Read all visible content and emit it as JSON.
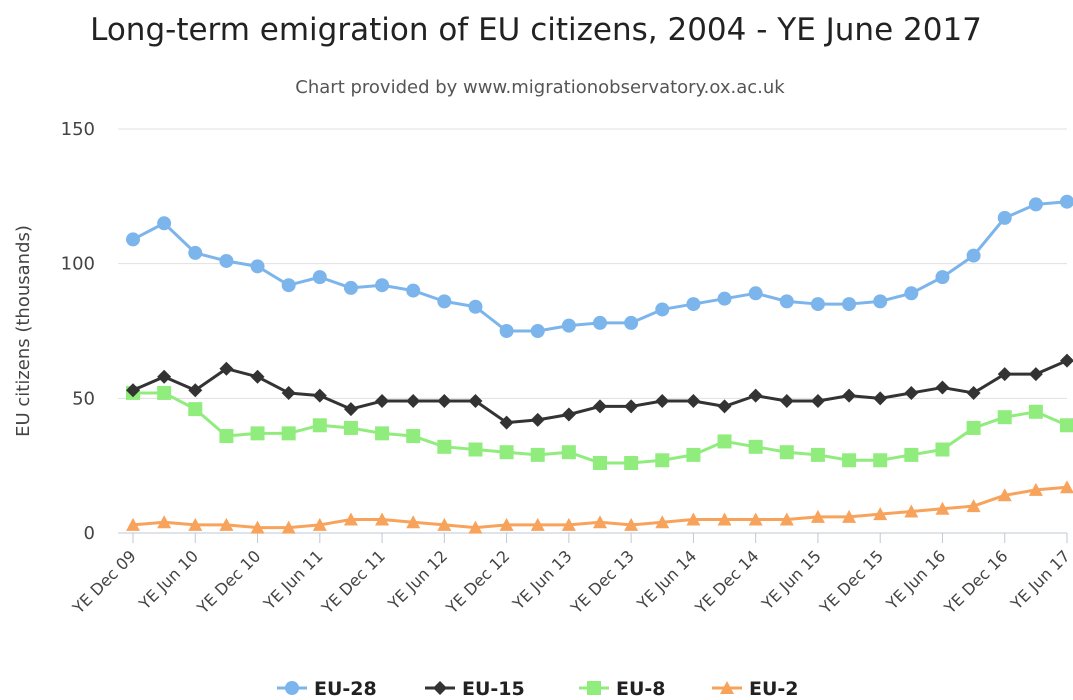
{
  "chart_data": {
    "type": "line",
    "title": "Long-term emigration of EU citizens, 2004 - YE June 2017",
    "subtitle": "Chart provided by www.migrationobservatory.ox.ac.uk",
    "ylabel": "EU citizens (thousands)",
    "xlabel": "",
    "ylim": [
      0,
      150
    ],
    "yticks": [
      0,
      50,
      100,
      150
    ],
    "grid": true,
    "legend_position": "bottom",
    "x": [
      "YE Dec 09",
      "YE Mar 10",
      "YE Jun 10",
      "YE Sep 10",
      "YE Dec 10",
      "YE Mar 11",
      "YE Jun 11",
      "YE Sep 11",
      "YE Dec 11",
      "YE Mar 12",
      "YE Jun 12",
      "YE Sep 12",
      "YE Dec 12",
      "YE Mar 13",
      "YE Jun 13",
      "YE Sep 13",
      "YE Dec 13",
      "YE Mar 14",
      "YE Jun 14",
      "YE Sep 14",
      "YE Dec 14",
      "YE Mar 15",
      "YE Jun 15",
      "YE Sep 15",
      "YE Dec 15",
      "YE Mar 16",
      "YE Jun 16",
      "YE Sep 16",
      "YE Dec 16",
      "YE Mar 17",
      "YE Jun 17"
    ],
    "x_tick_labels": [
      "YE Dec 09",
      "YE Jun 10",
      "YE Dec 10",
      "YE Jun 11",
      "YE Dec 11",
      "YE Jun 12",
      "YE Dec 12",
      "YE Jun 13",
      "YE Dec 13",
      "YE Jun 14",
      "YE Dec 14",
      "YE Jun 15",
      "YE Dec 15",
      "YE Jun 16",
      "YE Dec 16",
      "YE Jun 17"
    ],
    "series": [
      {
        "name": "EU-28",
        "color": "#7cb5ec",
        "marker": "circle",
        "values": [
          109,
          115,
          104,
          101,
          99,
          92,
          95,
          91,
          92,
          90,
          86,
          84,
          75,
          75,
          77,
          78,
          78,
          83,
          85,
          87,
          89,
          86,
          85,
          85,
          86,
          89,
          95,
          103,
          117,
          122,
          123
        ]
      },
      {
        "name": "EU-15",
        "color": "#333333",
        "marker": "diamond",
        "values": [
          53,
          58,
          53,
          61,
          58,
          52,
          51,
          46,
          49,
          49,
          49,
          49,
          41,
          42,
          44,
          47,
          47,
          49,
          49,
          47,
          51,
          49,
          49,
          51,
          50,
          52,
          54,
          52,
          59,
          59,
          64
        ]
      },
      {
        "name": "EU-8",
        "color": "#90ed7d",
        "marker": "square",
        "values": [
          52,
          52,
          46,
          36,
          37,
          37,
          40,
          39,
          37,
          36,
          32,
          31,
          30,
          29,
          30,
          26,
          26,
          27,
          29,
          34,
          32,
          30,
          29,
          27,
          27,
          29,
          31,
          39,
          43,
          45,
          40
        ]
      },
      {
        "name": "EU-2",
        "color": "#f7a35c",
        "marker": "triangle",
        "values": [
          3,
          4,
          3,
          3,
          2,
          2,
          3,
          5,
          5,
          4,
          3,
          2,
          3,
          3,
          3,
          4,
          3,
          4,
          5,
          5,
          5,
          5,
          6,
          6,
          7,
          8,
          9,
          10,
          14,
          16,
          17
        ]
      }
    ]
  }
}
